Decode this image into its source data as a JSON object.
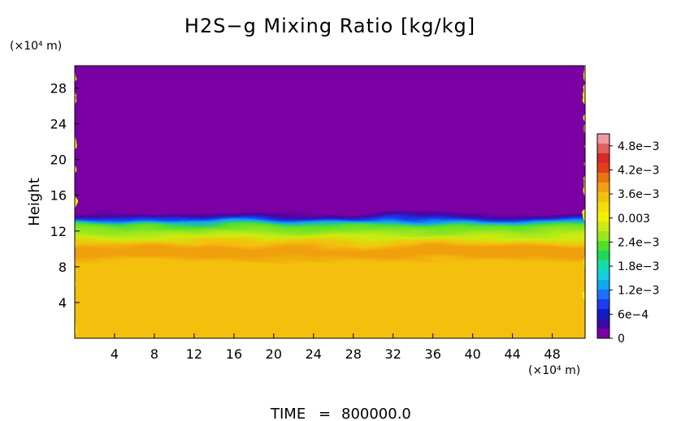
{
  "chart_data": {
    "type": "heatmap",
    "title": "H2S−g Mixing Ratio [kg/kg]",
    "xlabel": "",
    "ylabel": "Height",
    "x_unit": "(×10⁴ m)",
    "y_unit": "(×10⁴ m)",
    "xlim": [
      0,
      51.3
    ],
    "ylim": [
      0,
      30.5
    ],
    "x_ticks": [
      4,
      8,
      12,
      16,
      20,
      24,
      28,
      32,
      36,
      40,
      44,
      48
    ],
    "y_ticks": [
      4,
      8,
      12,
      16,
      20,
      24,
      28
    ],
    "grid": false,
    "colorbar": {
      "range": [
        0,
        0.0051
      ],
      "labels": [
        "4.8e−3",
        "4.2e−3",
        "3.6e−3",
        "0.003",
        "2.4e−3",
        "1.8e−3",
        "1.2e−3",
        "6e−4",
        "0"
      ],
      "label_values": [
        0.0048,
        0.0042,
        0.0036,
        0.003,
        0.0024,
        0.0018,
        0.0012,
        0.0006,
        0
      ],
      "colors": [
        "#7a00a4",
        "#3a0aa8",
        "#101cc4",
        "#1b3cf0",
        "#1a72ff",
        "#10a8f0",
        "#12d0dc",
        "#14dca8",
        "#20d858",
        "#4ee02a",
        "#9ae61e",
        "#ccec10",
        "#f2f000",
        "#f4dd08",
        "#f4c010",
        "#f0a010",
        "#ea7410",
        "#e04018",
        "#d82828",
        "#e06060",
        "#f09aa0"
      ]
    },
    "profile": [
      {
        "height": 0,
        "value": 0.0036
      },
      {
        "height": 8.9,
        "value": 0.0036
      },
      {
        "height": 9.6,
        "value": 0.0037
      },
      {
        "height": 10.4,
        "value": 0.0038
      },
      {
        "height": 10.9,
        "value": 0.0034
      },
      {
        "height": 11.5,
        "value": 0.0027
      },
      {
        "height": 12.1,
        "value": 0.0025
      },
      {
        "height": 12.7,
        "value": 0.0022
      },
      {
        "height": 13.1,
        "value": 0.0014
      },
      {
        "height": 13.4,
        "value": 0.0009
      },
      {
        "height": 13.8,
        "value": 0.0004
      },
      {
        "height": 14.2,
        "value": 0.0001
      },
      {
        "height": 14.6,
        "value": 0
      },
      {
        "height": 30.5,
        "value": 0
      }
    ]
  },
  "footer": {
    "time_label": "TIME",
    "time_eq": "=",
    "time_value": "800000.0"
  }
}
